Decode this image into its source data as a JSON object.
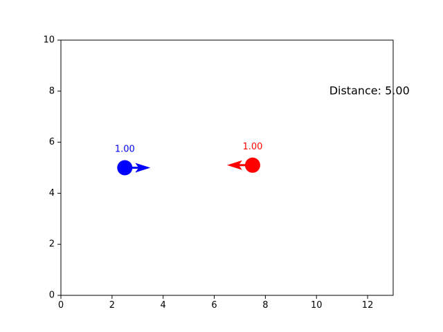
{
  "chart_data": {
    "type": "scatter",
    "title": "",
    "xlabel": "",
    "ylabel": "",
    "xlim": [
      0,
      13
    ],
    "ylim": [
      0,
      10
    ],
    "x_ticks": [
      "0",
      "2",
      "4",
      "6",
      "8",
      "10",
      "12"
    ],
    "y_ticks": [
      "0",
      "2",
      "4",
      "6",
      "8",
      "10"
    ],
    "grid": false,
    "points": [
      {
        "x": 2.5,
        "y": 5.0,
        "color": "#0000ff",
        "label": "1.00",
        "direction": "right"
      },
      {
        "x": 7.5,
        "y": 5.1,
        "color": "#ff0000",
        "label": "1.00",
        "direction": "left"
      }
    ],
    "readout": {
      "text": "Distance: 5.00",
      "x": 10.5,
      "y": 8.0
    }
  }
}
